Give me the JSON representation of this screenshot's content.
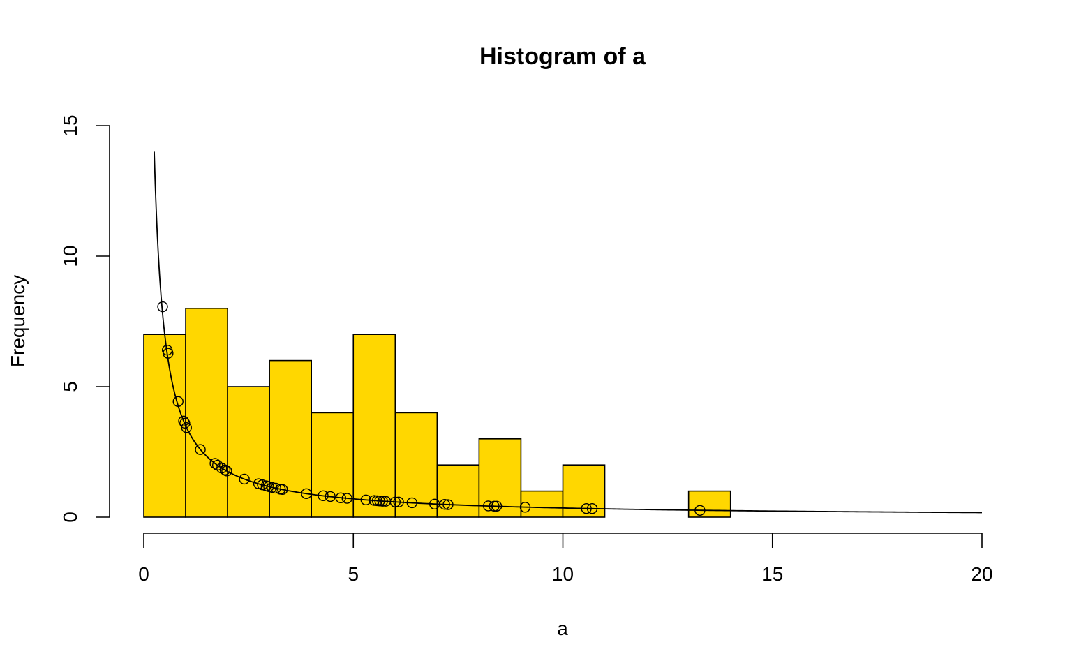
{
  "chart_data": {
    "type": "bar",
    "title": "Histogram of a",
    "xlabel": "a",
    "ylabel": "Frequency",
    "xlim": [
      0,
      20
    ],
    "ylim": [
      0,
      15
    ],
    "x_ticks": [
      "0",
      "5",
      "10",
      "15",
      "20"
    ],
    "y_ticks": [
      "0",
      "5",
      "10",
      "15"
    ],
    "bins": [
      {
        "start": 0,
        "end": 1,
        "count": 7
      },
      {
        "start": 1,
        "end": 2,
        "count": 8
      },
      {
        "start": 2,
        "end": 3,
        "count": 5
      },
      {
        "start": 3,
        "end": 4,
        "count": 6
      },
      {
        "start": 4,
        "end": 5,
        "count": 4
      },
      {
        "start": 5,
        "end": 6,
        "count": 7
      },
      {
        "start": 6,
        "end": 7,
        "count": 4
      },
      {
        "start": 7,
        "end": 8,
        "count": 2
      },
      {
        "start": 8,
        "end": 9,
        "count": 3
      },
      {
        "start": 9,
        "end": 10,
        "count": 1
      },
      {
        "start": 10,
        "end": 11,
        "count": 2
      },
      {
        "start": 11,
        "end": 12,
        "count": 0
      },
      {
        "start": 12,
        "end": 13,
        "count": 0
      },
      {
        "start": 13,
        "end": 14,
        "count": 1
      },
      {
        "start": 14,
        "end": 15,
        "count": 0
      },
      {
        "start": 15,
        "end": 16,
        "count": 0
      },
      {
        "start": 16,
        "end": 17,
        "count": 0
      },
      {
        "start": 17,
        "end": 18,
        "count": 0
      },
      {
        "start": 18,
        "end": 19,
        "count": 0
      },
      {
        "start": 19,
        "end": 20,
        "count": 0
      }
    ],
    "curve": {
      "type": "line",
      "formula": "y = 3.5 / x",
      "x_range": [
        0.25,
        20
      ]
    },
    "points": {
      "type": "scatter",
      "marker": "open-circle",
      "x": [
        0.45,
        0.56,
        0.58,
        0.82,
        0.95,
        0.98,
        1.02,
        1.35,
        1.7,
        1.76,
        1.86,
        1.94,
        1.98,
        2.4,
        2.74,
        2.83,
        2.92,
        2.98,
        3.06,
        3.15,
        3.26,
        3.31,
        3.88,
        4.28,
        4.45,
        4.7,
        4.85,
        5.3,
        5.5,
        5.57,
        5.63,
        5.7,
        5.77,
        6.0,
        6.08,
        6.4,
        6.94,
        7.18,
        7.26,
        8.22,
        8.36,
        8.42,
        9.1,
        10.56,
        10.7,
        13.27
      ],
      "y": [
        8.06,
        6.4,
        6.28,
        4.43,
        3.68,
        3.6,
        3.43,
        2.59,
        2.06,
        1.99,
        1.88,
        1.81,
        1.77,
        1.46,
        1.28,
        1.24,
        1.2,
        1.17,
        1.14,
        1.11,
        1.07,
        1.06,
        0.9,
        0.82,
        0.79,
        0.74,
        0.72,
        0.66,
        0.64,
        0.63,
        0.62,
        0.61,
        0.61,
        0.58,
        0.58,
        0.55,
        0.5,
        0.49,
        0.48,
        0.43,
        0.42,
        0.42,
        0.38,
        0.33,
        0.33,
        0.26
      ]
    },
    "colors": {
      "bar_fill": "#FFD700",
      "stroke": "#000000"
    },
    "grid": false,
    "legend": "none"
  }
}
